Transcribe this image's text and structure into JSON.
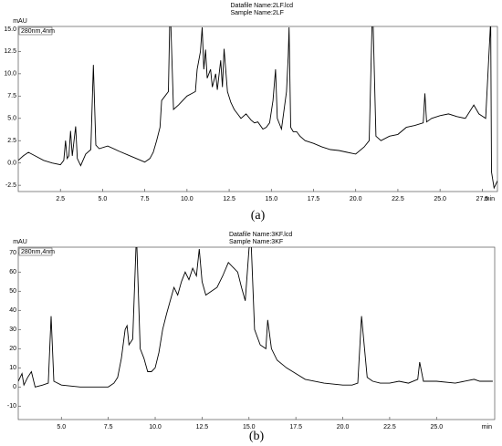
{
  "chart_data": [
    {
      "type": "line",
      "title": "Datafile Name:2LF.lcd",
      "subtitle": "Sample Name:2LF",
      "ylabel": "mAU",
      "xlabel": "min",
      "annotation": "280nm,4nm",
      "caption": "(a)",
      "color": "#000000",
      "xlim": [
        0,
        28.4
      ],
      "ylim": [
        -3.2,
        15.3
      ],
      "xticks": [
        2.5,
        {
          "value": 5,
          "label": "5.0"
        },
        7.5,
        {
          "value": 10,
          "label": "10.0"
        },
        12.5,
        {
          "value": 15,
          "label": "15.0"
        },
        17.5,
        {
          "value": 20,
          "label": "20.0"
        },
        22.5,
        {
          "value": 25,
          "label": "25.0"
        },
        27.5
      ],
      "yticks": [
        -2.5,
        {
          "value": 0,
          "label": "0.0"
        },
        2.5,
        {
          "value": 5,
          "label": "5.0"
        },
        7.5,
        {
          "value": 10,
          "label": "10.0"
        },
        12.5,
        {
          "value": 15,
          "label": "15.0"
        }
      ],
      "x": [
        0,
        0.3,
        0.6,
        1,
        1.5,
        2,
        2.5,
        2.7,
        2.8,
        2.9,
        3.0,
        3.1,
        3.2,
        3.4,
        3.5,
        3.7,
        4,
        4.3,
        4.45,
        4.6,
        4.8,
        5.3,
        6,
        6.5,
        7,
        7.5,
        7.8,
        8,
        8.2,
        8.4,
        8.5,
        8.7,
        8.9,
        9.0,
        9.2,
        9.5,
        10,
        10.3,
        10.5,
        10.6,
        10.8,
        10.9,
        11.0,
        11.1,
        11.2,
        11.4,
        11.5,
        11.7,
        11.8,
        12.0,
        12.1,
        12.2,
        12.4,
        12.6,
        12.8,
        13,
        13.2,
        13.5,
        13.8,
        14,
        14.2,
        14.5,
        14.7,
        14.9,
        15.1,
        15.25,
        15.35,
        15.6,
        15.9,
        16.0,
        16.05,
        16.15,
        16.3,
        16.5,
        16.7,
        17,
        17.5,
        18,
        18.5,
        19,
        19.5,
        20,
        20.5,
        20.8,
        21.0,
        21.2,
        21.5,
        22,
        22.5,
        23,
        23.5,
        24,
        24.1,
        24.2,
        24.5,
        25,
        25.5,
        26,
        26.5,
        27,
        27.3,
        27.7,
        28.0,
        28.05,
        28.2,
        28.4
      ],
      "values": [
        0.3,
        0.8,
        1.2,
        0.8,
        0.3,
        0.0,
        -0.2,
        0.3,
        2.5,
        0.5,
        0.8,
        3.6,
        0.8,
        4.1,
        0.5,
        -0.3,
        1.0,
        1.5,
        11,
        2.0,
        1.6,
        1.9,
        1.3,
        0.9,
        0.5,
        0.1,
        0.5,
        1.2,
        2.5,
        4.0,
        7.0,
        7.5,
        8,
        18,
        6.0,
        6.5,
        7.5,
        7.8,
        8.0,
        10.5,
        12.5,
        15.2,
        10.5,
        12.7,
        9.5,
        10.5,
        8.5,
        10.0,
        8.2,
        11.5,
        8.5,
        12.8,
        8.0,
        6.8,
        6.0,
        5.5,
        5.0,
        5.5,
        4.8,
        4.5,
        4.6,
        3.8,
        4.0,
        4.5,
        7,
        10.5,
        5.0,
        3.8,
        8,
        12,
        15.2,
        4,
        3.5,
        3.5,
        3.0,
        2.5,
        2.2,
        1.8,
        1.5,
        1.4,
        1.2,
        1.0,
        1.8,
        2.5,
        18,
        3.0,
        2.5,
        3.0,
        3.2,
        4.0,
        4.2,
        4.5,
        7.8,
        4.6,
        5.0,
        5.3,
        5.5,
        5.2,
        5.0,
        6.5,
        5.5,
        5.0,
        16,
        -1,
        -2.8,
        -2.0
      ]
    },
    {
      "type": "line",
      "title": "Datafile Name:3KF.lcd",
      "subtitle": "Sample Name:3KF",
      "ylabel": "mAU",
      "xlabel": "min",
      "annotation": "280nm,4nm",
      "caption": "(b)",
      "color": "#000000",
      "xlim": [
        2.7,
        28.1
      ],
      "ylim": [
        -17,
        73
      ],
      "xticks": [
        {
          "value": 5,
          "label": "5.0"
        },
        7.5,
        {
          "value": 10,
          "label": "10.0"
        },
        12.5,
        {
          "value": 15,
          "label": "15.0"
        },
        17.5,
        {
          "value": 20,
          "label": "20.0"
        },
        22.5,
        {
          "value": 25,
          "label": "25.0"
        }
      ],
      "yticks": [
        -10,
        0,
        10,
        20,
        30,
        40,
        50,
        60,
        70
      ],
      "x": [
        2.7,
        2.9,
        3.0,
        3.2,
        3.4,
        3.6,
        4,
        4.3,
        4.45,
        4.6,
        5,
        6,
        7,
        7.5,
        7.8,
        8,
        8.2,
        8.4,
        8.5,
        8.6,
        8.8,
        9.0,
        9.2,
        9.4,
        9.6,
        9.8,
        10,
        10.2,
        10.4,
        10.6,
        10.8,
        11,
        11.2,
        11.4,
        11.6,
        11.8,
        12.0,
        12.2,
        12.35,
        12.5,
        12.7,
        13,
        13.3,
        13.6,
        13.9,
        14.2,
        14.4,
        14.6,
        14.8,
        15.0,
        15.1,
        15.3,
        15.6,
        15.9,
        16.0,
        16.2,
        16.5,
        17,
        17.5,
        18,
        19,
        20,
        20.5,
        20.8,
        21.0,
        21.3,
        21.6,
        22,
        22.5,
        23,
        23.5,
        24,
        24.1,
        24.3,
        25,
        26,
        27,
        27.3,
        28
      ],
      "values": [
        3,
        7,
        1,
        5,
        8,
        0,
        1,
        2,
        37,
        3,
        1,
        0,
        0,
        0,
        2,
        5,
        15,
        30,
        32,
        22,
        25,
        80,
        20,
        15,
        8,
        8,
        10,
        18,
        30,
        38,
        45,
        52,
        48,
        55,
        60,
        56,
        62,
        58,
        72,
        55,
        48,
        50,
        52,
        58,
        65,
        62,
        60,
        52,
        45,
        72,
        80,
        30,
        22,
        20,
        35,
        20,
        14,
        10,
        7,
        4,
        2,
        1,
        1,
        2,
        37,
        5,
        3,
        2,
        2,
        3,
        2,
        4,
        13,
        3,
        3,
        2,
        4,
        3,
        3
      ]
    }
  ]
}
